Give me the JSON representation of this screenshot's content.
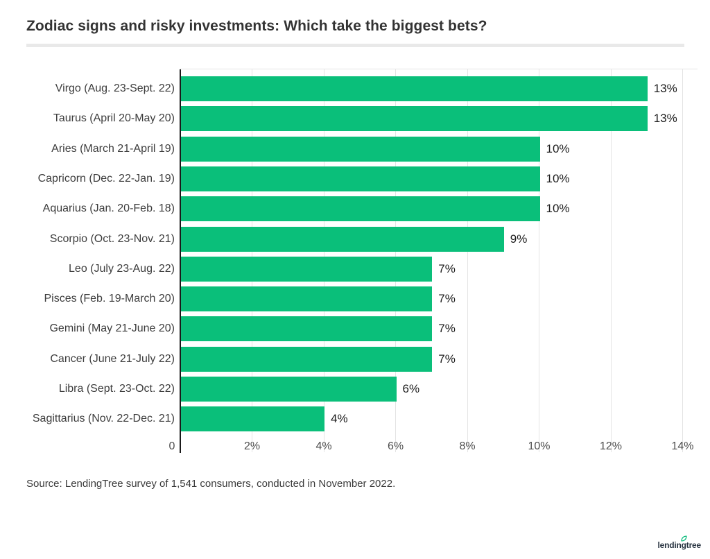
{
  "title": "Zodiac signs and risky investments: Which take the biggest bets?",
  "source": "Source: LendingTree survey of 1,541 consumers, conducted in November 2022.",
  "logo": {
    "text": "lendingtree"
  },
  "colors": {
    "bar": "#0abf7a",
    "axis_line": "#1a1a1a",
    "gridline": "#e4e4e4",
    "leaf_green": "#00b876"
  },
  "chart_data": {
    "type": "bar",
    "orientation": "horizontal",
    "title": "Zodiac signs and risky investments: Which take the biggest bets?",
    "categories": [
      "Virgo (Aug. 23-Sept. 22)",
      "Taurus (April 20-May 20)",
      "Aries (March 21-April 19)",
      "Capricorn (Dec. 22-Jan. 19)",
      "Aquarius (Jan. 20-Feb. 18)",
      "Scorpio (Oct. 23-Nov. 21)",
      "Leo (July 23-Aug. 22)",
      "Pisces (Feb. 19-March 20)",
      "Gemini (May 21-June 20)",
      "Cancer (June 21-July 22)",
      "Libra (Sept. 23-Oct. 22)",
      "Sagittarius (Nov. 22-Dec. 21)"
    ],
    "values": [
      13,
      13,
      10,
      10,
      10,
      9,
      7,
      7,
      7,
      7,
      6,
      4
    ],
    "value_labels": [
      "13%",
      "13%",
      "10%",
      "10%",
      "10%",
      "9%",
      "7%",
      "7%",
      "7%",
      "7%",
      "6%",
      "4%"
    ],
    "xlabel": "",
    "ylabel": "",
    "xlim": [
      0,
      14.4
    ],
    "grid": "vertical",
    "x_ticks": [
      {
        "label": "0",
        "value": 0
      },
      {
        "label": "2%",
        "value": 2
      },
      {
        "label": "4%",
        "value": 4
      },
      {
        "label": "6%",
        "value": 6
      },
      {
        "label": "8%",
        "value": 8
      },
      {
        "label": "10%",
        "value": 10
      },
      {
        "label": "12%",
        "value": 12
      },
      {
        "label": "14%",
        "value": 14
      }
    ]
  }
}
